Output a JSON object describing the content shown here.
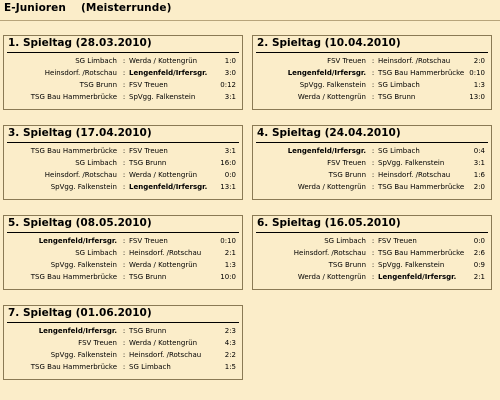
{
  "page": {
    "title": "E-Junioren    (Meisterrunde)",
    "separator": ":"
  },
  "spieltage": [
    {
      "title": "1. Spieltag (28.03.2010)",
      "matches": [
        {
          "home": "SG Limbach",
          "away": "Werda / Kottengrün",
          "score": "1:0",
          "home_bold": false,
          "away_bold": false
        },
        {
          "home": "Heinsdorf. /Rotschau",
          "away": "Lengenfeld/Irfersgr.",
          "score": "3:0",
          "home_bold": false,
          "away_bold": true
        },
        {
          "home": "TSG Brunn",
          "away": "FSV Treuen",
          "score": "0:12",
          "home_bold": false,
          "away_bold": false
        },
        {
          "home": "TSG Bau Hammerbrücke",
          "away": "SpVgg. Falkenstein",
          "score": "3:1",
          "home_bold": false,
          "away_bold": false
        }
      ]
    },
    {
      "title": "2. Spieltag (10.04.2010)",
      "matches": [
        {
          "home": "FSV Treuen",
          "away": "Heinsdorf. /Rotschau",
          "score": "2:0",
          "home_bold": false,
          "away_bold": false
        },
        {
          "home": "Lengenfeld/Irfersgr.",
          "away": "TSG Bau Hammerbrücke",
          "score": "0:10",
          "home_bold": true,
          "away_bold": false
        },
        {
          "home": "SpVgg. Falkenstein",
          "away": "SG Limbach",
          "score": "1:3",
          "home_bold": false,
          "away_bold": false
        },
        {
          "home": "Werda / Kottengrün",
          "away": "TSG Brunn",
          "score": "13:0",
          "home_bold": false,
          "away_bold": false
        }
      ]
    },
    {
      "title": "3. Spieltag (17.04.2010)",
      "matches": [
        {
          "home": "TSG Bau Hammerbrücke",
          "away": "FSV Treuen",
          "score": "3:1",
          "home_bold": false,
          "away_bold": false
        },
        {
          "home": "SG Limbach",
          "away": "TSG Brunn",
          "score": "16:0",
          "home_bold": false,
          "away_bold": false
        },
        {
          "home": "Heinsdorf. /Rotschau",
          "away": "Werda / Kottengrün",
          "score": "0:0",
          "home_bold": false,
          "away_bold": false
        },
        {
          "home": "SpVgg. Falkenstein",
          "away": "Lengenfeld/Irfersgr.",
          "score": "13:1",
          "home_bold": false,
          "away_bold": true
        }
      ]
    },
    {
      "title": "4. Spieltag (24.04.2010)",
      "matches": [
        {
          "home": "Lengenfeld/Irfersgr.",
          "away": "SG Limbach",
          "score": "0:4",
          "home_bold": true,
          "away_bold": false
        },
        {
          "home": "FSV Treuen",
          "away": "SpVgg. Falkenstein",
          "score": "3:1",
          "home_bold": false,
          "away_bold": false
        },
        {
          "home": "TSG Brunn",
          "away": "Heinsdorf. /Rotschau",
          "score": "1:6",
          "home_bold": false,
          "away_bold": false
        },
        {
          "home": "Werda / Kottengrün",
          "away": "TSG Bau Hammerbrücke",
          "score": "2:0",
          "home_bold": false,
          "away_bold": false
        }
      ]
    },
    {
      "title": "5. Spieltag (08.05.2010)",
      "matches": [
        {
          "home": "Lengenfeld/Irfersgr.",
          "away": "FSV Treuen",
          "score": "0:10",
          "home_bold": true,
          "away_bold": false
        },
        {
          "home": "SG Limbach",
          "away": "Heinsdorf. /Rotschau",
          "score": "2:1",
          "home_bold": false,
          "away_bold": false
        },
        {
          "home": "SpVgg. Falkenstein",
          "away": "Werda / Kottengrün",
          "score": "1:3",
          "home_bold": false,
          "away_bold": false
        },
        {
          "home": "TSG Bau Hammerbrücke",
          "away": "TSG Brunn",
          "score": "10:0",
          "home_bold": false,
          "away_bold": false
        }
      ]
    },
    {
      "title": "6. Spieltag (16.05.2010)",
      "matches": [
        {
          "home": "SG Limbach",
          "away": "FSV Treuen",
          "score": "0:0",
          "home_bold": false,
          "away_bold": false
        },
        {
          "home": "Heinsdorf. /Rotschau",
          "away": "TSG Bau Hammerbrücke",
          "score": "2:6",
          "home_bold": false,
          "away_bold": false
        },
        {
          "home": "TSG Brunn",
          "away": "SpVgg. Falkenstein",
          "score": "0:9",
          "home_bold": false,
          "away_bold": false
        },
        {
          "home": "Werda / Kottengrün",
          "away": "Lengenfeld/Irfersgr.",
          "score": "2:1",
          "home_bold": false,
          "away_bold": true
        }
      ]
    },
    {
      "title": "7. Spieltag (01.06.2010)",
      "matches": [
        {
          "home": "Lengenfeld/Irfersgr.",
          "away": "TSG Brunn",
          "score": "2:3",
          "home_bold": true,
          "away_bold": false
        },
        {
          "home": "FSV Treuen",
          "away": "Werda / Kottengrün",
          "score": "4:3",
          "home_bold": false,
          "away_bold": false
        },
        {
          "home": "SpVgg. Falkenstein",
          "away": "Heinsdorf. /Rotschau",
          "score": "2:2",
          "home_bold": false,
          "away_bold": false
        },
        {
          "home": "TSG Bau Hammerbrücke",
          "away": "SG Limbach",
          "score": "1:5",
          "home_bold": false,
          "away_bold": false
        }
      ]
    }
  ]
}
